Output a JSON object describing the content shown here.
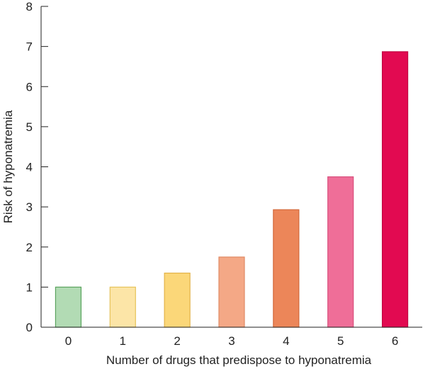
{
  "chart_data": {
    "type": "bar",
    "categories": [
      "0",
      "1",
      "2",
      "3",
      "4",
      "5",
      "6"
    ],
    "values": [
      1.0,
      1.0,
      1.35,
      1.75,
      2.93,
      3.75,
      6.87
    ],
    "title": "",
    "xlabel": "Number of drugs that predispose to hyponatremia",
    "ylabel": "Risk of hyponatremia",
    "ylim": [
      0,
      8
    ],
    "yticks": [
      "0",
      "1",
      "2",
      "3",
      "4",
      "5",
      "6",
      "7",
      "8"
    ],
    "grid": false,
    "legend": "none",
    "bar_fills": [
      "#b2dbb4",
      "#fce5a7",
      "#fbd779",
      "#f4a886",
      "#ec8659",
      "#ef6e98",
      "#e20a51"
    ],
    "bar_strokes": [
      "#5aa35e",
      "#e6c35a",
      "#e3b34a",
      "#e08a64",
      "#d2683a",
      "#d9507d",
      "#c00842"
    ]
  }
}
